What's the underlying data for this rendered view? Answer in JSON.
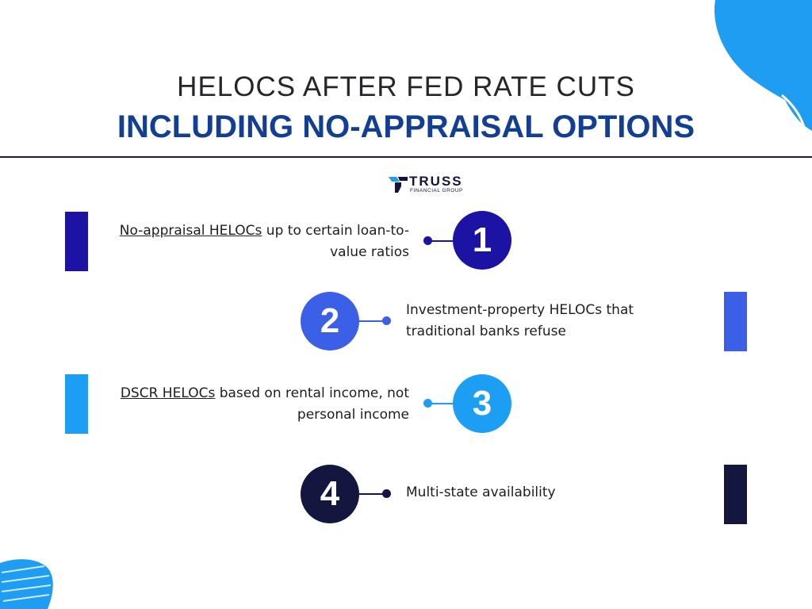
{
  "title": {
    "line1": "HELOCS AFTER FED RATE CUTS",
    "line2": "INCLUDING NO-APPRAISAL OPTIONS"
  },
  "logo": {
    "name": "TRUSS",
    "subtitle": "FINANCIAL GROUP"
  },
  "colors": {
    "title_accent": "#123f94",
    "item1": "#1c12a4",
    "item2": "#3c5fe8",
    "item3": "#1c9ef5",
    "item4": "#13163f",
    "decor_blue": "#1e9df2"
  },
  "items": [
    {
      "number": "1",
      "link": "No-appraisal HELOCs",
      "rest": " up to certain loan-to-",
      "line2": "value ratios"
    },
    {
      "number": "2",
      "line1": "Investment-property HELOCs that",
      "line2": "traditional banks refuse"
    },
    {
      "number": "3",
      "link": "DSCR HELOCs",
      "rest": " based on rental income, not",
      "line2": "personal income"
    },
    {
      "number": "4",
      "line1": "Multi-state availability"
    }
  ]
}
